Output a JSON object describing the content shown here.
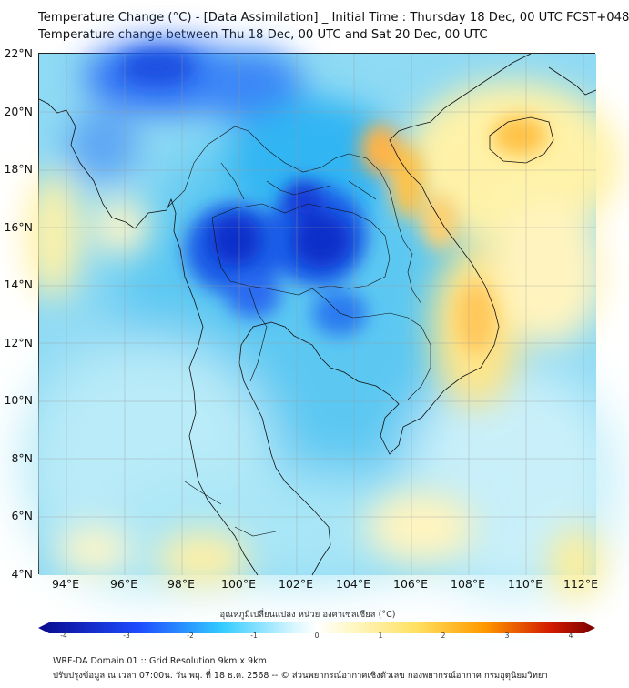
{
  "header": {
    "title_line1": "Temperature Change (°C) - [Data Assimilation] _ Initial Time : Thursday 18 Dec, 00 UTC FCST+048",
    "title_line2": "Temperature change between Thu 18 Dec, 00 UTC and Sat 20 Dec, 00 UTC"
  },
  "map": {
    "lat_labels": [
      "22°N",
      "20°N",
      "18°N",
      "16°N",
      "14°N",
      "12°N",
      "10°N",
      "8°N",
      "6°N",
      "4°N"
    ],
    "lon_labels": [
      "94°E",
      "96°E",
      "98°E",
      "100°E",
      "102°E",
      "104°E",
      "106°E",
      "108°E",
      "110°E",
      "112°E"
    ]
  },
  "colorbar": {
    "label": "อุณหภูมิเปลี่ยนแปลง หน่วย องศาเซลเซียส (°C)",
    "ticks": [
      "-4",
      "-3",
      "-2",
      "-1",
      "0",
      "1",
      "2",
      "3",
      "4"
    ],
    "colors": {
      "deep_blue": "#0a0a8c",
      "blue": "#1e4bff",
      "cyan": "#33ccff",
      "white": "#ffffff",
      "yellow": "#ffe060",
      "orange": "#ff9a00",
      "dark_red": "#7a0000"
    }
  },
  "footer": {
    "line1": "WRF-DA Domain 01 :: Grid Resolution 9km x 9km",
    "line2": "ปรับปรุงข้อมูล ณ เวลา 07:00น. วัน พฤ. ที่ 18 ธ.ค. 2568 -- © ส่วนพยากรณ์อากาศเชิงตัวเลข กองพยากรณ์อากาศ กรมอุตุนิยมวิทยา"
  }
}
